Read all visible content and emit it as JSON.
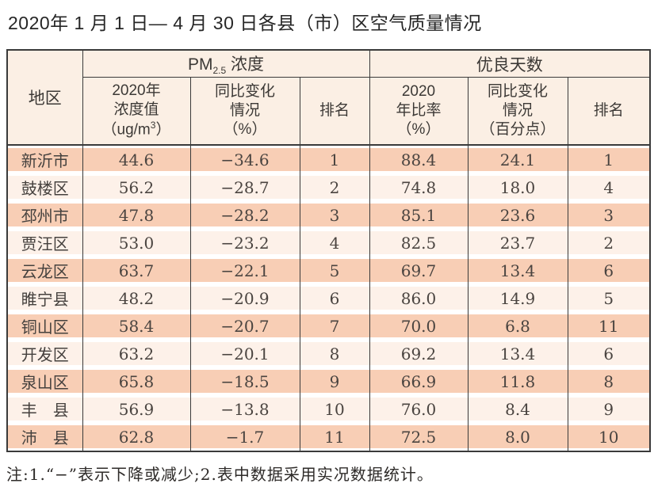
{
  "title": "2020年 1 月 1 日— 4 月 30 日各县（市）区空气质量情况",
  "header": {
    "region": "地区",
    "pm_group": {
      "base": "PM",
      "sub": "2.5",
      "rest": " 浓度"
    },
    "days_group": "优良天数",
    "pm_value": {
      "l1": "2020年",
      "l2": "浓度值",
      "unit_pre": "（ug/m",
      "unit_sup": "3",
      "unit_post": "）"
    },
    "pm_change": {
      "l1": "同比变化",
      "l2": "情况",
      "l3": "（%）"
    },
    "pm_rank": "排名",
    "days_ratio": {
      "l1": "2020",
      "l2": "年比率",
      "l3": "（%）"
    },
    "days_change": {
      "l1": "同比变化",
      "l2": "情况",
      "l3": "（百分点）"
    },
    "days_rank": "排名"
  },
  "chart_data": {
    "type": "table",
    "title": "2020年 1 月 1 日— 4 月 30 日各县（市）区空气质量情况",
    "columns": [
      "地区",
      "PM2.5浓度 2020年浓度值（ug/m3）",
      "PM2.5浓度 同比变化情况（%）",
      "PM2.5浓度 排名",
      "优良天数 2020年比率（%）",
      "优良天数 同比变化情况（百分点）",
      "优良天数 排名"
    ],
    "rows": [
      [
        "新沂市",
        "44.6",
        "−34.6",
        "1",
        "88.4",
        "24.1",
        "1"
      ],
      [
        "鼓楼区",
        "56.2",
        "−28.7",
        "2",
        "74.8",
        "18.0",
        "4"
      ],
      [
        "邳州市",
        "47.8",
        "−28.2",
        "3",
        "85.1",
        "23.6",
        "3"
      ],
      [
        "贾汪区",
        "53.0",
        "−23.2",
        "4",
        "82.5",
        "23.7",
        "2"
      ],
      [
        "云龙区",
        "63.7",
        "−22.1",
        "5",
        "69.7",
        "13.4",
        "6"
      ],
      [
        "睢宁县",
        "48.2",
        "−20.9",
        "6",
        "86.0",
        "14.9",
        "5"
      ],
      [
        "铜山区",
        "58.4",
        "−20.7",
        "7",
        "70.0",
        "6.8",
        "11"
      ],
      [
        "开发区",
        "63.2",
        "−20.1",
        "8",
        "69.2",
        "13.4",
        "6"
      ],
      [
        "泉山区",
        "65.8",
        "−18.5",
        "9",
        "66.9",
        "11.8",
        "8"
      ],
      [
        "丰　县",
        "56.9",
        "−13.8",
        "10",
        "76.0",
        "8.4",
        "9"
      ],
      [
        "沛　县",
        "62.8",
        "−1.7",
        "11",
        "72.5",
        "8.0",
        "10"
      ]
    ]
  },
  "note": "注:1.“−”表示下降或减少;2.表中数据采用实况数据统计。",
  "colors": {
    "row_stripe_dark": "#f8ceb5",
    "row_stripe_light": "#fdf1e9",
    "header_bg": "#fbefe4",
    "border": "#3a3a3a",
    "title_text": "#262626",
    "cell_text": "#4a4440"
  }
}
